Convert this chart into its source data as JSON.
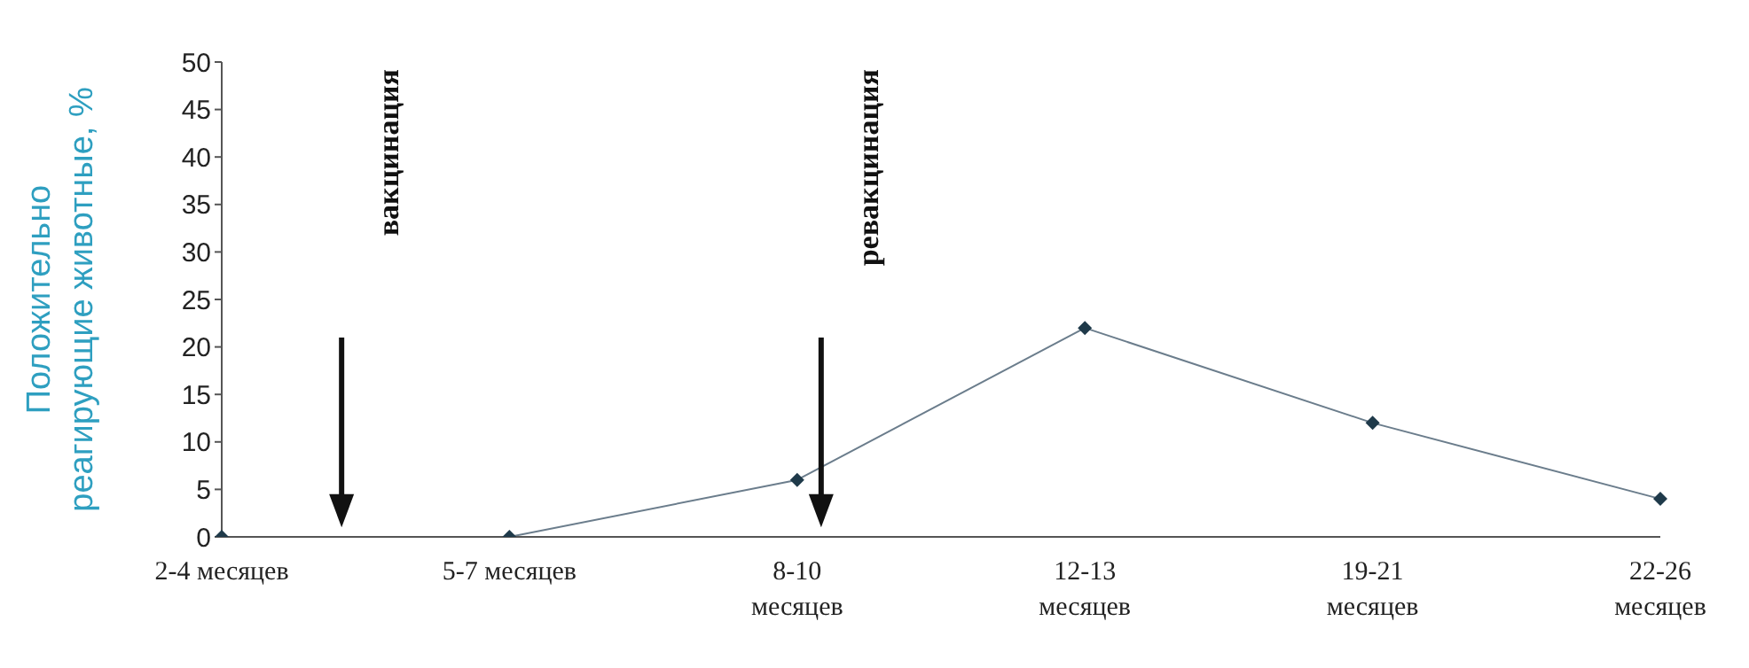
{
  "chart_data": {
    "type": "line",
    "ylabel": "Положительно\nреагирующие животные, %",
    "categories": [
      "2-4 месяцев",
      "5-7 месяцев",
      "8-10\nмесяцев",
      "12-13\nмесяцев",
      "19-21\nмесяцев",
      "22-26\nмесяцев"
    ],
    "series": [
      {
        "color": "#1f3a4a",
        "values": [
          0,
          0,
          6,
          22,
          12,
          4
        ]
      }
    ],
    "ylim": [
      0,
      50
    ],
    "yticks": [
      0,
      5,
      10,
      15,
      20,
      25,
      30,
      35,
      40,
      45,
      50
    ],
    "grid": false,
    "legend": false,
    "marker": "diamond",
    "line_style": "solid",
    "annotations": [
      "вакцинация",
      "ревакцинация"
    ]
  }
}
